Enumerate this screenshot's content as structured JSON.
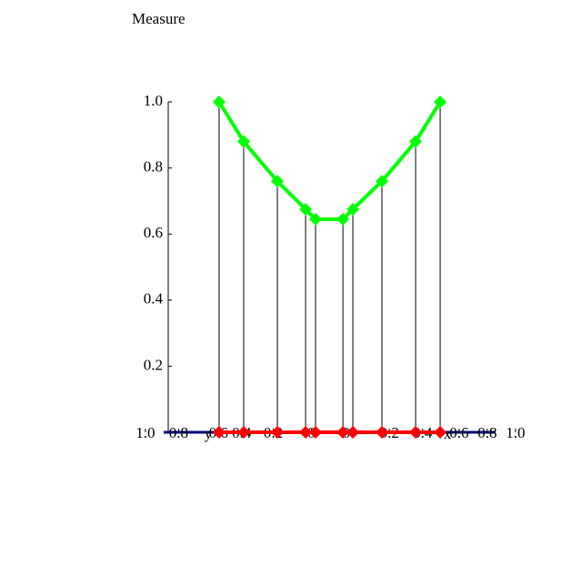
{
  "chart_data": {
    "type": "line",
    "title": "Measure",
    "x": [
      -0.666,
      -0.518,
      -0.315,
      -0.145,
      -0.085,
      0.08,
      0.14,
      0.315,
      0.518,
      0.666
    ],
    "series": [
      {
        "color": "#00ff00",
        "values": [
          1.0,
          0.88,
          0.76,
          0.675,
          0.645,
          0.645,
          0.675,
          0.76,
          0.88,
          1.0
        ]
      },
      {
        "color": "#ff0000",
        "values": [
          0,
          0,
          0,
          0,
          0,
          0,
          0,
          0,
          0,
          0
        ]
      }
    ],
    "stems": true,
    "xlim": [
      -1,
      1
    ],
    "ylim": [
      0,
      1
    ],
    "yticks": [
      0.2,
      0.4,
      0.6,
      0.8,
      {
        "value": 1,
        "label": "1.0"
      }
    ],
    "xticks": [
      {
        "value": -1.11,
        "label": "1.0"
      },
      {
        "value": -0.91,
        "label": "0.8"
      },
      {
        "value": -0.67,
        "label": "0.6"
      },
      {
        "value": -0.53,
        "label": "0.4"
      },
      {
        "value": -0.34,
        "label": "0.2"
      },
      {
        "value": -0.11,
        "label": "0"
      },
      {
        "value": 0.1,
        "label": "0"
      },
      {
        "value": 0.36,
        "label": "0.2"
      },
      {
        "value": 0.56,
        "label": "0.4"
      },
      {
        "value": 0.78,
        "label": "0.6"
      },
      {
        "value": 0.95,
        "label": "0.8"
      },
      {
        "value": 1.12,
        "label": "1.0"
      }
    ],
    "xlabel": "x",
    "ylabel": "y"
  }
}
